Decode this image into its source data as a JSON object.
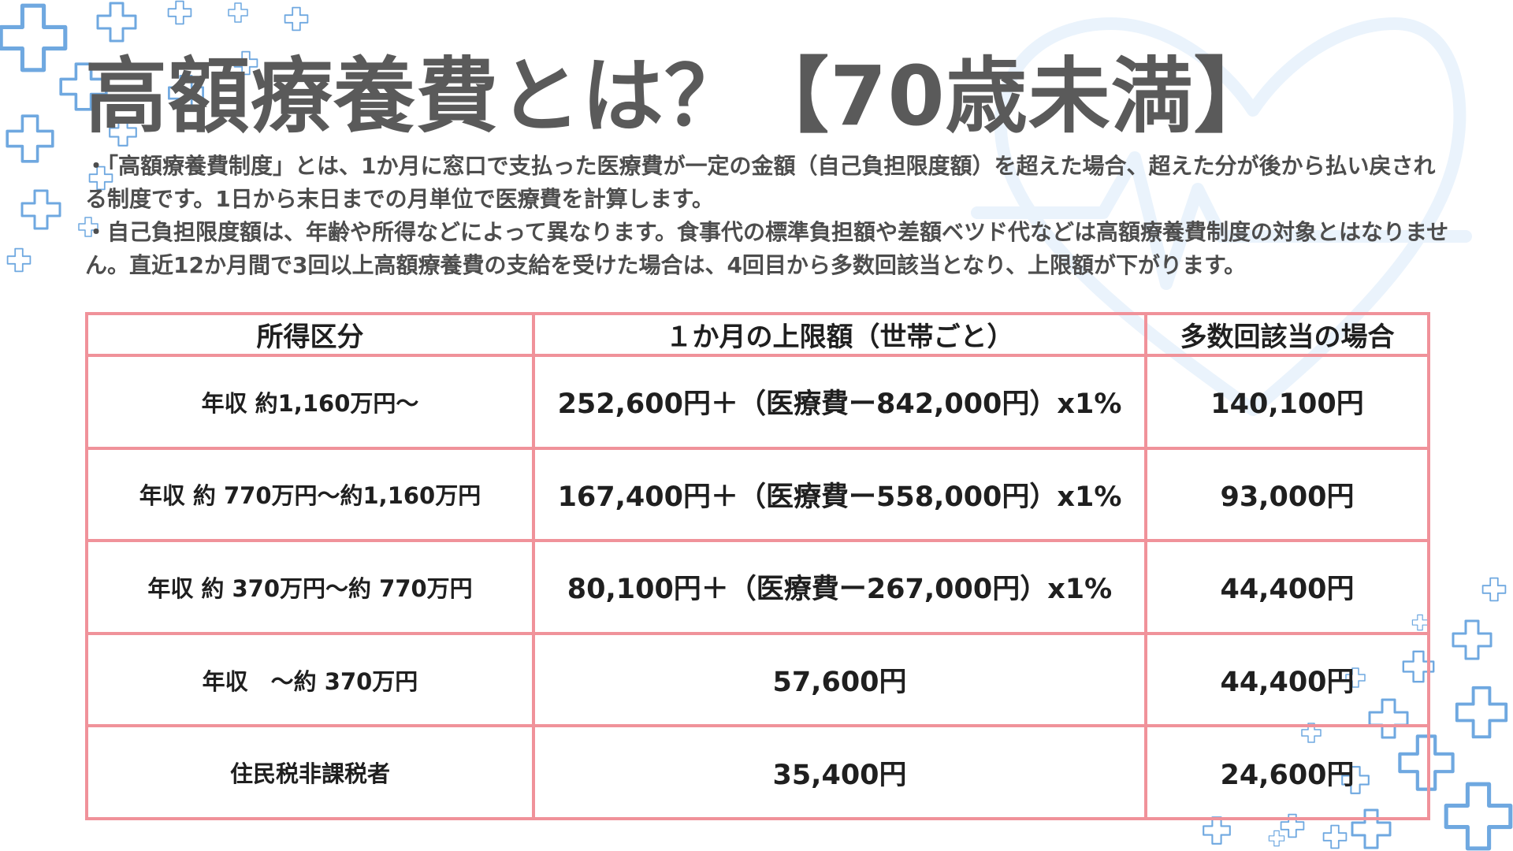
{
  "slide": {
    "title": "高額療養費とは？【70歳未満】",
    "bullets": [
      "・「高額療養費制度」とは、1か月に窓口で支払った医療費が一定の金額（自己負担限度額）を超えた場合、超えた分が後から払い戻される制度です。1日から末日までの月単位で医療費を計算します。",
      "・自己負担限度額は、年齢や所得などによって異なります。食事代の標準負担額や差額ベツド代などは高額療養費制度の対象とはなりません。直近12か月間で3回以上高額療養費の支給を受けた場合は、4回目から多数回該当となり、上限額が下がります。"
    ]
  },
  "table": {
    "headers": [
      "所得区分",
      "１か月の上限額（世帯ごと）",
      "多数回該当の場合"
    ],
    "rows": [
      [
        "年収 約1,160万円～",
        "252,600円＋（医療費ー842,000円）x1%",
        "140,100円"
      ],
      [
        "年収 約 770万円～約1,160万円",
        "167,400円＋（医療費ー558,000円）x1%",
        "93,000円"
      ],
      [
        "年収 約 370万円～約 770万円",
        "80,100円＋（医療費ー267,000円）x1%",
        "44,400円"
      ],
      [
        "年収　～約 370万円",
        "57,600円",
        "44,400円"
      ],
      [
        "住民税非課税者",
        "35,400円",
        "24,600円"
      ]
    ]
  },
  "colors": {
    "title": "#5a5a5a",
    "text": "#4d4d4d",
    "table_border": "#f0929a",
    "decor_cross": "#6fa8e0",
    "decor_heart": "#eaf3fc"
  },
  "decor_icons": [
    "cross-icon",
    "heart-icon"
  ]
}
